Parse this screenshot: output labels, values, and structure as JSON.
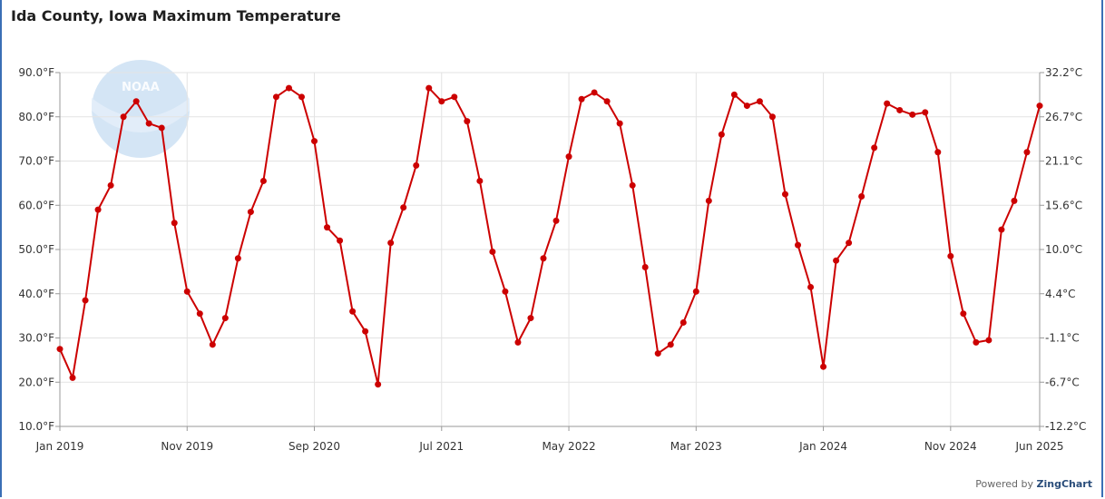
{
  "chart_data": {
    "type": "line",
    "title": "Ida County, Iowa Maximum Temperature",
    "xlabel": "",
    "ylabel": "",
    "ylim": [
      10,
      90
    ],
    "y_ticks": [
      "10.0°F",
      "20.0°F",
      "30.0°F",
      "40.0°F",
      "50.0°F",
      "60.0°F",
      "70.0°F",
      "80.0°F",
      "90.0°F"
    ],
    "y_ticks_right": [
      "-12.2°C",
      "-6.7°C",
      "-1.1°C",
      "4.4°C",
      "10.0°C",
      "15.6°C",
      "21.1°C",
      "26.7°C",
      "32.2°C"
    ],
    "x_tick_labels": [
      "Jan 2019",
      "Nov 2019",
      "Sep 2020",
      "Jul 2021",
      "May 2022",
      "Mar 2023",
      "Jan 2024",
      "Nov 2024",
      "Jun 2025"
    ],
    "x_start": "Jan 2019",
    "x_end": "Jun 2025",
    "grid": true,
    "series": [
      {
        "color": "#cc0000",
        "values": [
          27.5,
          21,
          38.5,
          59,
          64.5,
          80,
          83.5,
          78.5,
          77.5,
          56,
          40.5,
          35.5,
          28.5,
          34.5,
          48,
          58.5,
          65.5,
          84.5,
          86.5,
          84.5,
          74.5,
          55,
          52,
          36,
          31.5,
          19.5,
          51.5,
          59.5,
          69,
          86.5,
          83.5,
          84.5,
          79,
          65.5,
          49.5,
          40.5,
          29,
          34.5,
          48,
          56.5,
          71,
          84,
          85.5,
          83.5,
          78.5,
          64.5,
          46,
          26.5,
          28.5,
          33.5,
          40.5,
          61,
          76,
          85,
          82.5,
          83.5,
          80,
          62.5,
          51,
          41.5,
          23.5,
          47.5,
          51.5,
          62,
          73,
          83,
          81.5,
          80.5,
          81,
          72,
          48.5,
          35.5,
          29,
          29.5,
          54.5,
          61,
          72,
          82.5
        ]
      }
    ]
  },
  "footer": {
    "powered_prefix": "Powered by",
    "powered_brand": "ZingChart"
  },
  "logo": {
    "text": "NOAA"
  }
}
